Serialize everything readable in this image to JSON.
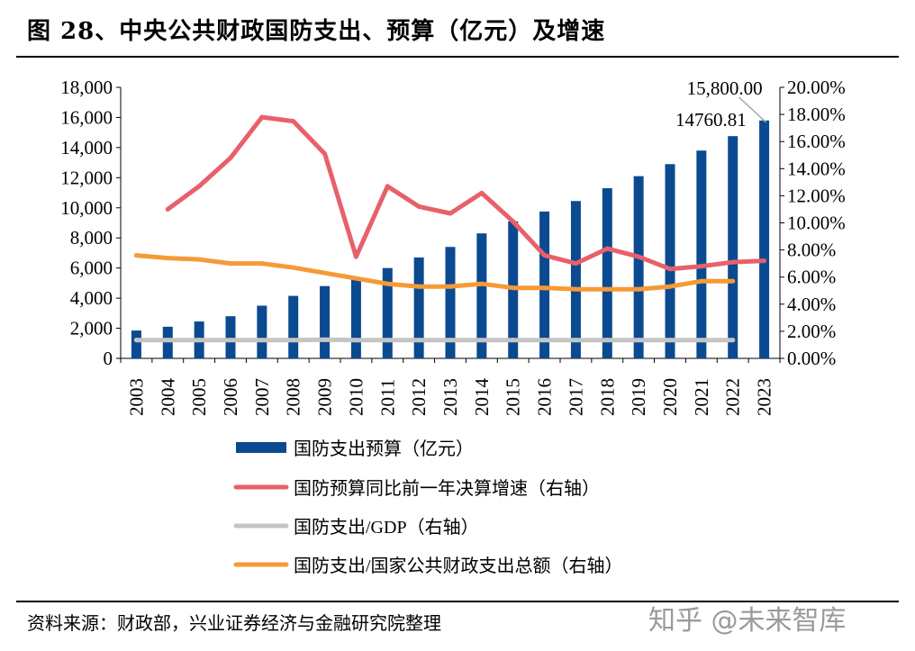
{
  "title": "图 28、中央公共财政国防支出、预算（亿元）及增速",
  "footer": "资料来源：财政部，兴业证券经济与金融研究院整理",
  "watermark": "知乎 @未来智库",
  "colors": {
    "bar": "#0b4a91",
    "growth": "#e8606a",
    "gdp": "#c4c4c4",
    "share": "#f59a36"
  },
  "chart_data": {
    "type": "bar",
    "categories": [
      "2003",
      "2004",
      "2005",
      "2006",
      "2007",
      "2008",
      "2009",
      "2010",
      "2011",
      "2012",
      "2013",
      "2014",
      "2015",
      "2016",
      "2017",
      "2018",
      "2019",
      "2020",
      "2021",
      "2022",
      "2023"
    ],
    "left_axis": {
      "min": 0,
      "max": 18000,
      "step": 2000,
      "tick_labels": [
        "0",
        "2,000",
        "4,000",
        "6,000",
        "8,000",
        "10,000",
        "12,000",
        "14,000",
        "16,000",
        "18,000"
      ]
    },
    "right_axis": {
      "min": 0,
      "max": 20,
      "step": 2,
      "tick_labels": [
        "0.00%",
        "2.00%",
        "4.00%",
        "6.00%",
        "8.00%",
        "10.00%",
        "12.00%",
        "14.00%",
        "16.00%",
        "18.00%",
        "20.00%"
      ]
    },
    "series": [
      {
        "name": "国防支出预算（亿元）",
        "kind": "bar",
        "axis": "left",
        "color_key": "bar",
        "values": [
          1850,
          2100,
          2450,
          2800,
          3500,
          4150,
          4800,
          5300,
          6000,
          6700,
          7400,
          8300,
          9100,
          9750,
          10450,
          11300,
          12100,
          12900,
          13800,
          14760.81,
          15800
        ]
      },
      {
        "name": "国防预算同比前一年决算增速（右轴）",
        "kind": "line",
        "axis": "right",
        "color_key": "growth",
        "values": [
          null,
          11.0,
          12.7,
          14.8,
          17.8,
          17.5,
          15.1,
          7.5,
          12.7,
          11.2,
          10.7,
          12.2,
          10.1,
          7.6,
          7.0,
          8.1,
          7.5,
          6.6,
          6.8,
          7.1,
          7.2
        ]
      },
      {
        "name": "国防支出/GDP（右轴）",
        "kind": "line",
        "axis": "right",
        "color_key": "gdp",
        "values": [
          1.35,
          1.35,
          1.35,
          1.35,
          1.35,
          1.35,
          1.38,
          1.35,
          1.35,
          1.35,
          1.35,
          1.35,
          1.35,
          1.35,
          1.35,
          1.35,
          1.35,
          1.35,
          1.35,
          1.35,
          null
        ]
      },
      {
        "name": "国防支出/国家公共财政支出总额（右轴）",
        "kind": "line",
        "axis": "right",
        "color_key": "share",
        "values": [
          7.6,
          7.4,
          7.3,
          7.0,
          7.0,
          6.7,
          6.3,
          5.9,
          5.5,
          5.3,
          5.3,
          5.5,
          5.2,
          5.2,
          5.1,
          5.1,
          5.1,
          5.3,
          5.7,
          5.7,
          null
        ]
      }
    ],
    "annotations": [
      {
        "text": "15,800.00",
        "category": "2023"
      },
      {
        "text": "14760.81",
        "category": "2022"
      }
    ]
  }
}
